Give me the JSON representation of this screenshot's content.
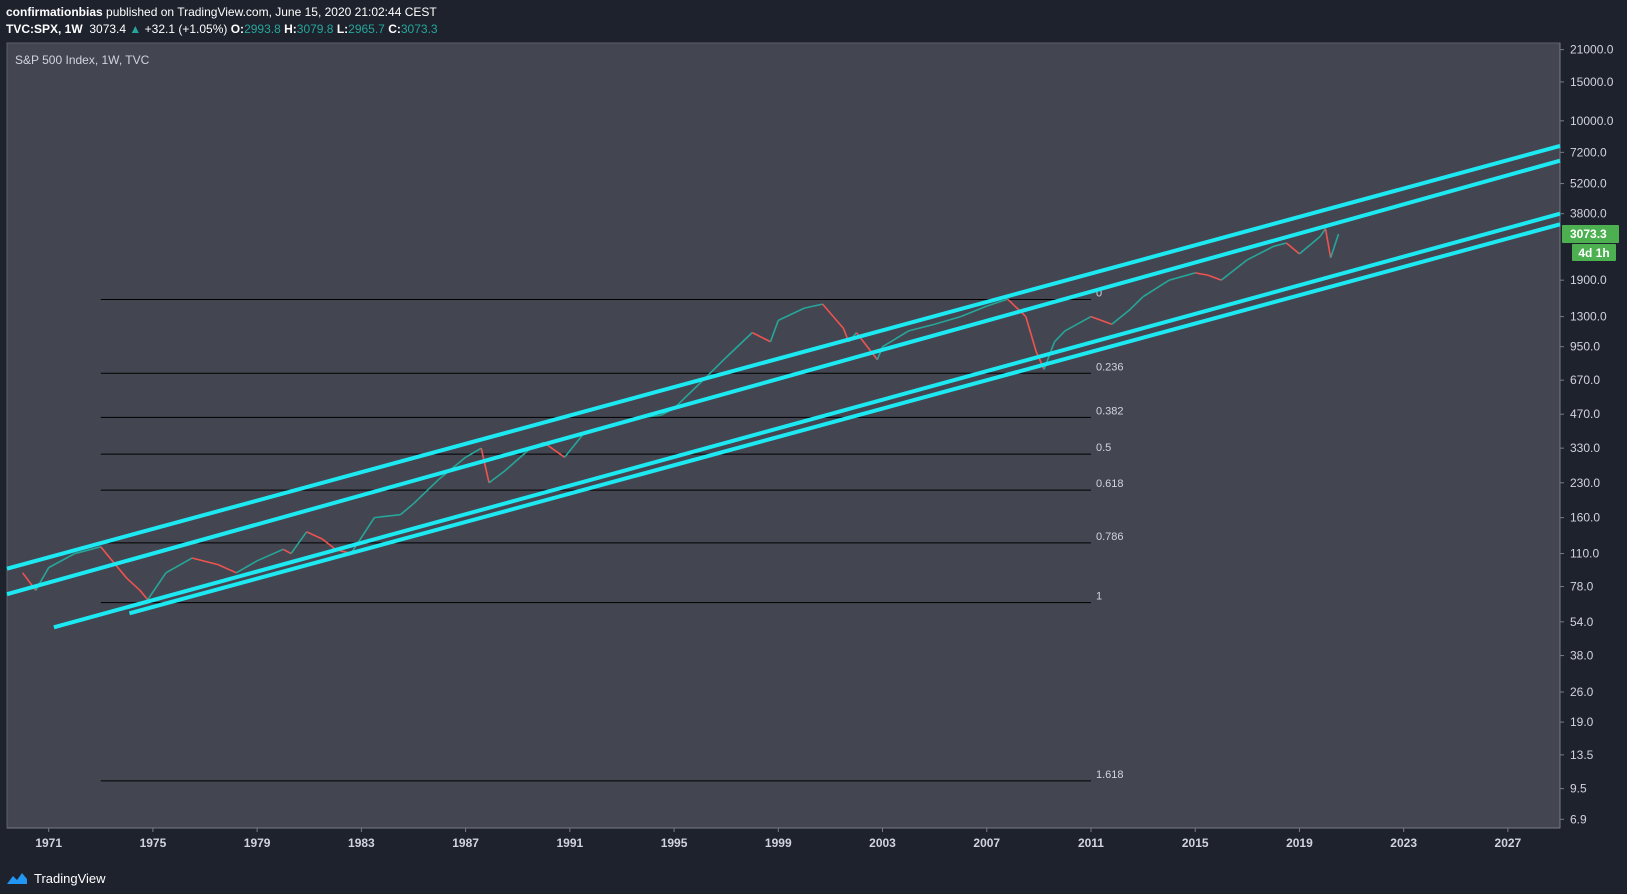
{
  "header": {
    "author": "confirmationbias",
    "published_text": "published on TradingView.com, June 15, 2020 21:02:44 CEST",
    "symbol": "TVC:SPX, 1W",
    "last": "3073.4",
    "change": "+32.1 (+1.05%)",
    "o_label": "O:",
    "o": "2993.8",
    "h_label": "H:",
    "h": "3079.8",
    "l_label": "L:",
    "l": "2965.7",
    "c_label": "C:",
    "c": "3073.3"
  },
  "footer": {
    "brand": "TradingView"
  },
  "colors": {
    "background": "#1e222d",
    "plot_background": "#434651",
    "channel": "#1de9f2",
    "fib_line": "#000000",
    "up_candle": "#26a69a",
    "down_candle": "#ef5350",
    "price_badge": "#4caf50"
  },
  "chart_data": {
    "type": "line",
    "title": "S&P 500 Index, 1W, TVC",
    "scale": "log",
    "xlim": [
      1969.4,
      2029.0
    ],
    "ylim": [
      6.3,
      22500
    ],
    "x_ticks": [
      "1971",
      "1975",
      "1979",
      "1983",
      "1987",
      "1991",
      "1995",
      "1999",
      "2003",
      "2007",
      "2011",
      "2015",
      "2019",
      "2023",
      "2027"
    ],
    "y_ticks": [
      "21000.0",
      "15000.0",
      "10000.0",
      "7200.0",
      "5200.0",
      "3800.0",
      "1900.0",
      "1300.0",
      "950.0",
      "670.0",
      "470.0",
      "330.0",
      "230.0",
      "160.0",
      "110.0",
      "78.0",
      "54.0",
      "38.0",
      "26.0",
      "19.0",
      "13.5",
      "9.5",
      "6.9"
    ],
    "price_badge": "3073.3",
    "countdown_badge": "4d 1h",
    "fib_levels": [
      {
        "label": "0",
        "value": 1553
      },
      {
        "label": "0.236",
        "value": 720
      },
      {
        "label": "0.382",
        "value": 455
      },
      {
        "label": "0.5",
        "value": 310
      },
      {
        "label": "0.618",
        "value": 213
      },
      {
        "label": "0.786",
        "value": 123
      },
      {
        "label": "1",
        "value": 66
      },
      {
        "label": "1.618",
        "value": 10.3
      }
    ],
    "fib_x_range": [
      1973.0,
      2011.0
    ],
    "channel_lines": [
      {
        "x": [
          1969.4,
          2029.0
        ],
        "y": [
          94,
          7700
        ]
      },
      {
        "x": [
          1969.4,
          2029.0
        ],
        "y": [
          72,
          6600
        ]
      },
      {
        "x": [
          1971.2,
          2029.0
        ],
        "y": [
          51,
          3800
        ]
      },
      {
        "x": [
          1974.1,
          2029.0
        ],
        "y": [
          59,
          3400
        ]
      }
    ],
    "series": [
      {
        "x": [
          1970.0,
          1970.5,
          1971.0,
          1972.0,
          1973.0,
          1973.5,
          1974.0,
          1974.5,
          1974.8,
          1975.5,
          1976.5,
          1977.5,
          1978.2,
          1979.0,
          1980.0,
          1980.3,
          1980.9,
          1981.5,
          1982.0,
          1982.6,
          1983.5,
          1984.5,
          1985.0,
          1986.0,
          1987.0,
          1987.6,
          1987.9,
          1988.5,
          1989.5,
          1990.0,
          1990.8,
          1991.5,
          1992.5,
          1993.5,
          1994.5,
          1995.0,
          1996.0,
          1997.0,
          1998.0,
          1998.7,
          1999.0,
          2000.0,
          2000.7,
          2001.5,
          2001.7,
          2002.0,
          2002.8,
          2003.0,
          2004.0,
          2005.0,
          2006.0,
          2007.0,
          2007.8,
          2008.5,
          2008.9,
          2009.2,
          2009.6,
          2010.0,
          2011.0,
          2011.8,
          2012.5,
          2013.0,
          2014.0,
          2015.0,
          2015.5,
          2016.0,
          2017.0,
          2018.0,
          2018.5,
          2019.0,
          2019.8,
          2020.0,
          2020.2,
          2020.5
        ],
        "y": [
          90,
          75,
          95,
          110,
          118,
          100,
          85,
          75,
          68,
          90,
          105,
          98,
          90,
          102,
          115,
          110,
          138,
          128,
          115,
          110,
          160,
          165,
          185,
          240,
          300,
          330,
          230,
          260,
          330,
          350,
          300,
          380,
          420,
          450,
          465,
          500,
          650,
          850,
          1100,
          1000,
          1250,
          1420,
          1480,
          1150,
          1000,
          1100,
          830,
          950,
          1120,
          1200,
          1300,
          1450,
          1560,
          1300,
          900,
          750,
          1000,
          1120,
          1300,
          1200,
          1400,
          1600,
          1900,
          2050,
          2000,
          1900,
          2350,
          2700,
          2800,
          2500,
          3000,
          3250,
          2400,
          3073
        ]
      }
    ]
  }
}
